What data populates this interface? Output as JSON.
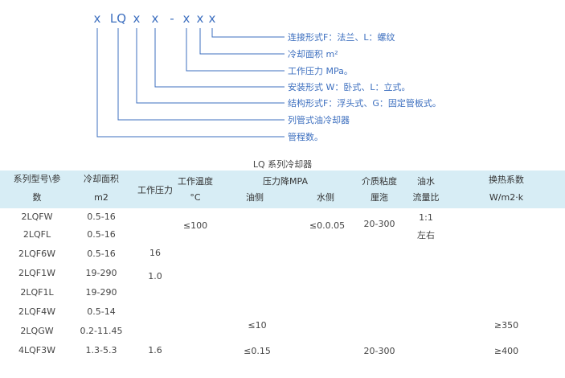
{
  "diagram": {
    "code_chars": [
      "x",
      "LQ",
      "x",
      "x",
      "-",
      "x",
      "x",
      "x"
    ],
    "labels": [
      "连接形式F：法兰、L：螺纹",
      "冷却面积 m²",
      "工作压力 MPa。",
      "安装形式 W：卧式、L：立式。",
      "结构形式F：浮头式、G：固定管板式。",
      "列管式油冷却器",
      "管程数。"
    ]
  },
  "table": {
    "caption": "LQ 系列冷却器",
    "headers": {
      "series_1": "系列型号\\参",
      "series_2": "数",
      "area_1": "冷却面积",
      "area_2": "m2",
      "pressure": "工作压力",
      "temp_1": "工作温度",
      "temp_2": "°C",
      "drop": "压力降MPA",
      "drop_oil": "油侧",
      "drop_water": "水侧",
      "visc_1": "介质粘度",
      "visc_2": "厘沲",
      "flow_1": "油水",
      "flow_2": "流量比",
      "heat_1": "换热系数",
      "heat_2": "W/m2·k"
    },
    "models": [
      "2LQFW",
      "2LQFL",
      "2LQF6W",
      "2LQF1W",
      "2LQF1L",
      "2LQF4W",
      "2LQGW",
      "4LQF3W"
    ],
    "areas": [
      "0.5-16",
      "0.5-16",
      "0.5-16",
      "19-290",
      "19-290",
      "0.5-14",
      "0.2-11.45",
      "1.3-5.3"
    ],
    "pressure_values": [
      "16",
      "1.0",
      "1.6"
    ],
    "temp_value": "≤100",
    "oil_drop_values": [
      "≤10",
      "≤0.15"
    ],
    "water_drop_value": "≤0.0.05",
    "viscosity_values": [
      "20-300",
      "20-300"
    ],
    "flow_ratio": [
      "1:1",
      "左右"
    ],
    "heat_values": [
      "≥350",
      "≥400"
    ]
  }
}
